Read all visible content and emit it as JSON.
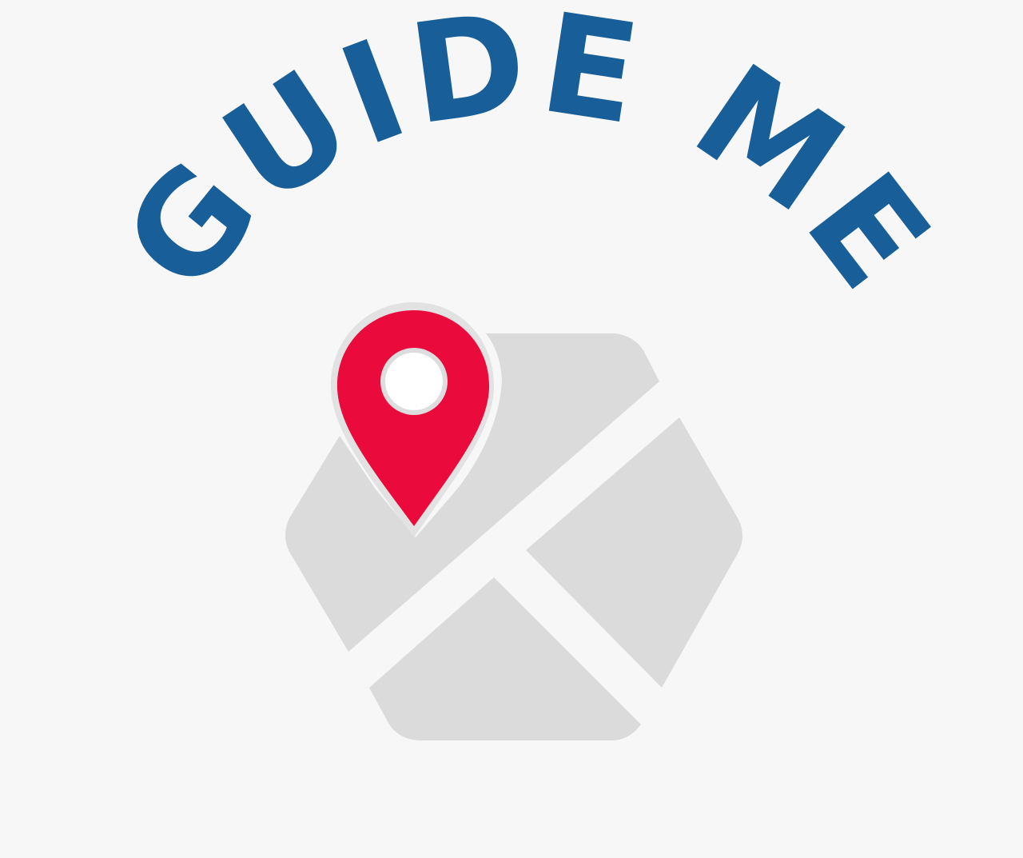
{
  "logo": {
    "text": "GUIDE ME",
    "colors": {
      "background": "#f7f7f7",
      "text": "#185e98",
      "pin": "#eb0a3c",
      "pin_outline": "#e2e2e2",
      "pin_hole": "#ffffff",
      "map": "#dbdbdb"
    },
    "icons": [
      "folded-map-icon",
      "location-pin-icon"
    ]
  }
}
